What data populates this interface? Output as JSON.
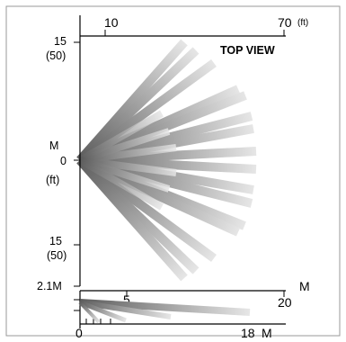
{
  "top_view": {
    "title": "TOP VIEW",
    "top_axis": {
      "ticks": [
        "10",
        "70"
      ],
      "unit": "(ft)"
    },
    "left_axis": {
      "top_label": "15",
      "top_label_alt": "(50)",
      "unit_m": "M",
      "zero": "0",
      "unit_ft": "(ft)",
      "bottom_label": "15",
      "bottom_label_alt": "(50)"
    }
  },
  "side_view": {
    "height_label": "2.1M",
    "x_ticks": [
      "5",
      "20"
    ],
    "x_unit_m": "M",
    "zero": "0",
    "range_label": "18",
    "range_unit": "M"
  },
  "colors": {
    "frame": "#999999",
    "axis": "#000000",
    "beam_dark": "#5c5c5c",
    "beam_light": "#e6e6e6"
  }
}
